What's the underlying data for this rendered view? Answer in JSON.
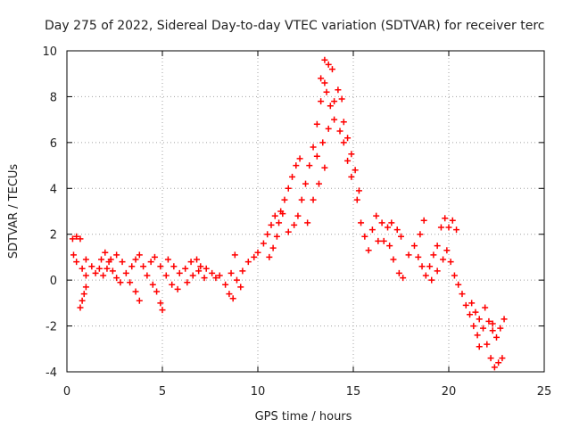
{
  "chart_data": {
    "type": "scatter",
    "title": "Day 275 of 2022, Sidereal Day-to-day VTEC variation (SDTVAR) for receiver terc",
    "xlabel": "GPS time / hours",
    "ylabel": "SDTVAR / TECUs",
    "xlim": [
      0,
      25
    ],
    "ylim": [
      -4,
      10
    ],
    "x_ticks": [
      "0",
      "5",
      "10",
      "15",
      "20",
      "25"
    ],
    "y_ticks": [
      "-4",
      "-2",
      "0",
      "2",
      "4",
      "6",
      "8",
      "10"
    ],
    "grid": true,
    "marker": "plus",
    "colors": {
      "series": "#ff0000",
      "grid": "#a0a0a0",
      "axes": "#000000"
    },
    "series": [
      {
        "name": "SDTVAR",
        "points": [
          [
            0.3,
            1.8
          ],
          [
            0.5,
            1.9
          ],
          [
            0.7,
            1.8
          ],
          [
            0.35,
            1.1
          ],
          [
            0.5,
            0.8
          ],
          [
            0.8,
            0.5
          ],
          [
            1.0,
            0.2
          ],
          [
            0.7,
            -1.2
          ],
          [
            0.8,
            -0.9
          ],
          [
            0.9,
            -0.6
          ],
          [
            1.0,
            -0.3
          ],
          [
            1.0,
            0.9
          ],
          [
            1.3,
            0.6
          ],
          [
            1.5,
            0.3
          ],
          [
            1.7,
            0.5
          ],
          [
            1.8,
            0.9
          ],
          [
            2.0,
            1.2
          ],
          [
            2.2,
            0.8
          ],
          [
            2.4,
            0.4
          ],
          [
            2.6,
            0.1
          ],
          [
            2.8,
            -0.1
          ],
          [
            1.9,
            0.2
          ],
          [
            2.1,
            0.5
          ],
          [
            2.3,
            0.9
          ],
          [
            2.6,
            1.1
          ],
          [
            2.9,
            0.8
          ],
          [
            3.1,
            0.3
          ],
          [
            3.3,
            -0.1
          ],
          [
            3.6,
            -0.5
          ],
          [
            3.8,
            -0.9
          ],
          [
            3.4,
            0.6
          ],
          [
            3.6,
            0.9
          ],
          [
            3.8,
            1.1
          ],
          [
            4.0,
            0.6
          ],
          [
            4.2,
            0.2
          ],
          [
            4.5,
            -0.2
          ],
          [
            4.7,
            -0.5
          ],
          [
            4.9,
            -1.0
          ],
          [
            5.0,
            -1.3
          ],
          [
            4.4,
            0.8
          ],
          [
            4.6,
            1.0
          ],
          [
            4.9,
            0.6
          ],
          [
            5.2,
            0.2
          ],
          [
            5.5,
            -0.2
          ],
          [
            5.8,
            -0.4
          ],
          [
            5.3,
            0.9
          ],
          [
            5.6,
            0.6
          ],
          [
            5.9,
            0.3
          ],
          [
            6.2,
            0.5
          ],
          [
            6.5,
            0.8
          ],
          [
            6.8,
            0.9
          ],
          [
            7.0,
            0.6
          ],
          [
            7.2,
            0.1
          ],
          [
            6.3,
            -0.1
          ],
          [
            6.6,
            0.2
          ],
          [
            6.9,
            0.4
          ],
          [
            7.3,
            0.5
          ],
          [
            7.6,
            0.3
          ],
          [
            7.8,
            0.1
          ],
          [
            8.0,
            0.2
          ],
          [
            8.3,
            -0.2
          ],
          [
            8.5,
            -0.6
          ],
          [
            8.7,
            -0.8
          ],
          [
            8.6,
            0.3
          ],
          [
            8.9,
            0.0
          ],
          [
            9.1,
            -0.3
          ],
          [
            8.8,
            1.1
          ],
          [
            9.2,
            0.4
          ],
          [
            9.5,
            0.8
          ],
          [
            9.8,
            1.0
          ],
          [
            10.0,
            1.2
          ],
          [
            10.3,
            1.6
          ],
          [
            10.5,
            2.0
          ],
          [
            10.7,
            2.4
          ],
          [
            10.9,
            2.8
          ],
          [
            11.1,
            2.5
          ],
          [
            11.3,
            2.9
          ],
          [
            10.6,
            1.0
          ],
          [
            10.8,
            1.4
          ],
          [
            11.0,
            1.9
          ],
          [
            11.2,
            3.0
          ],
          [
            11.4,
            3.5
          ],
          [
            11.6,
            4.0
          ],
          [
            11.8,
            4.5
          ],
          [
            12.0,
            5.0
          ],
          [
            12.2,
            5.3
          ],
          [
            11.6,
            2.1
          ],
          [
            11.9,
            2.4
          ],
          [
            12.1,
            2.8
          ],
          [
            12.3,
            3.5
          ],
          [
            12.5,
            4.2
          ],
          [
            12.7,
            5.0
          ],
          [
            12.9,
            5.8
          ],
          [
            13.1,
            6.8
          ],
          [
            13.3,
            7.8
          ],
          [
            13.5,
            8.6
          ],
          [
            13.3,
            8.8
          ],
          [
            13.6,
            8.2
          ],
          [
            13.8,
            7.6
          ],
          [
            14.0,
            7.8
          ],
          [
            14.2,
            8.3
          ],
          [
            14.4,
            7.9
          ],
          [
            13.5,
            9.6
          ],
          [
            13.7,
            9.4
          ],
          [
            13.9,
            9.2
          ],
          [
            13.1,
            5.4
          ],
          [
            13.4,
            6.0
          ],
          [
            13.7,
            6.6
          ],
          [
            14.0,
            7.0
          ],
          [
            12.6,
            2.5
          ],
          [
            12.9,
            3.5
          ],
          [
            13.2,
            4.2
          ],
          [
            13.5,
            4.9
          ],
          [
            14.3,
            6.5
          ],
          [
            14.5,
            6.9
          ],
          [
            14.7,
            6.2
          ],
          [
            14.9,
            5.5
          ],
          [
            15.1,
            4.8
          ],
          [
            15.3,
            3.9
          ],
          [
            14.5,
            6.0
          ],
          [
            14.7,
            5.2
          ],
          [
            14.9,
            4.5
          ],
          [
            15.2,
            3.5
          ],
          [
            15.4,
            2.5
          ],
          [
            15.6,
            1.9
          ],
          [
            15.8,
            1.3
          ],
          [
            16.0,
            2.2
          ],
          [
            16.2,
            2.8
          ],
          [
            16.5,
            2.5
          ],
          [
            16.8,
            2.3
          ],
          [
            17.0,
            2.5
          ],
          [
            17.3,
            2.2
          ],
          [
            17.5,
            1.9
          ],
          [
            16.3,
            1.7
          ],
          [
            16.6,
            1.7
          ],
          [
            16.9,
            1.5
          ],
          [
            17.1,
            0.9
          ],
          [
            17.4,
            0.3
          ],
          [
            17.6,
            0.1
          ],
          [
            17.9,
            1.1
          ],
          [
            18.2,
            1.5
          ],
          [
            18.5,
            2.0
          ],
          [
            18.7,
            2.6
          ],
          [
            18.4,
            1.0
          ],
          [
            18.6,
            0.6
          ],
          [
            18.8,
            0.2
          ],
          [
            19.0,
            0.6
          ],
          [
            19.2,
            1.1
          ],
          [
            19.4,
            1.5
          ],
          [
            19.6,
            2.3
          ],
          [
            19.8,
            2.7
          ],
          [
            20.0,
            2.3
          ],
          [
            20.2,
            2.6
          ],
          [
            20.4,
            2.2
          ],
          [
            19.1,
            0.0
          ],
          [
            19.4,
            0.4
          ],
          [
            19.7,
            0.9
          ],
          [
            19.9,
            1.3
          ],
          [
            20.1,
            0.8
          ],
          [
            20.3,
            0.2
          ],
          [
            20.5,
            -0.2
          ],
          [
            20.7,
            -0.6
          ],
          [
            20.9,
            -1.1
          ],
          [
            21.1,
            -1.5
          ],
          [
            21.3,
            -2.0
          ],
          [
            21.5,
            -2.4
          ],
          [
            21.6,
            -2.9
          ],
          [
            21.2,
            -1.0
          ],
          [
            21.4,
            -1.4
          ],
          [
            21.6,
            -1.7
          ],
          [
            21.8,
            -2.1
          ],
          [
            22.0,
            -2.8
          ],
          [
            22.2,
            -3.4
          ],
          [
            22.4,
            -3.8
          ],
          [
            22.6,
            -3.6
          ],
          [
            22.8,
            -3.4
          ],
          [
            22.3,
            -2.2
          ],
          [
            22.5,
            -2.5
          ],
          [
            22.7,
            -2.1
          ],
          [
            22.9,
            -1.7
          ],
          [
            21.9,
            -1.2
          ],
          [
            22.1,
            -1.8
          ],
          [
            22.3,
            -1.9
          ]
        ]
      }
    ]
  }
}
